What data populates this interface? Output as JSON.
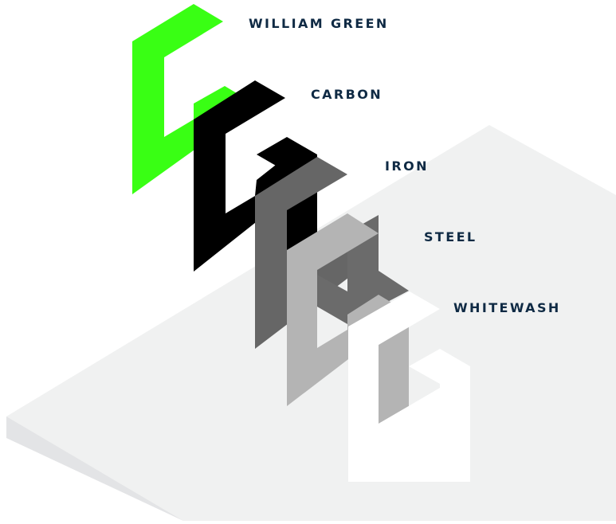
{
  "swatches": [
    {
      "name": "WILLIAM GREEN",
      "color": "#39ff14",
      "shade": "#39ff14"
    },
    {
      "name": "CARBON",
      "color": "#000000",
      "shade": "#000000"
    },
    {
      "name": "IRON",
      "color": "#666666",
      "shade": "#000000"
    },
    {
      "name": "STEEL",
      "color": "#b4b4b4",
      "shade": "#6b6b6b"
    },
    {
      "name": "WHITEWASH",
      "color": "#ffffff",
      "shade": "#b4b4b4"
    }
  ],
  "platform": {
    "top_color": "#f0f1f1",
    "side_color": "#e3e4e6"
  }
}
